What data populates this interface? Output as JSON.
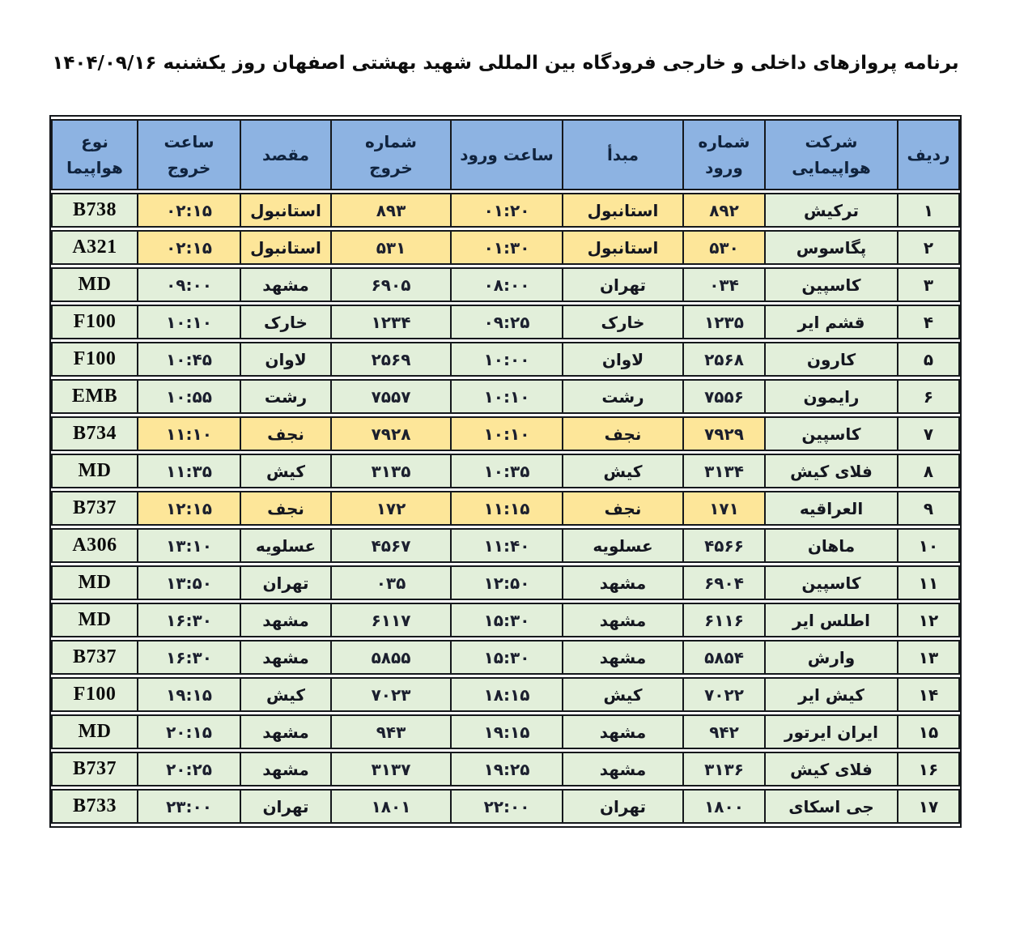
{
  "page": {
    "title": "برنامه پروازهای داخلی و خارجی فرودگاه بین المللی شهید بهشتی اصفهان روز  یکشنبه  ۱۴۰۴/۰۹/۱۶"
  },
  "colors": {
    "header_bg": "#8DB3E2",
    "row_bg": "#E2EFDA",
    "highlight_bg": "#FDE699",
    "border": "#15181c",
    "text": "#14161f"
  },
  "table": {
    "columns": [
      {
        "key": "radif",
        "label": "ردیف"
      },
      {
        "key": "airline",
        "label": "شرکت\nهواپیمایی"
      },
      {
        "key": "arrival_no",
        "label": "شماره\nورود"
      },
      {
        "key": "origin",
        "label": "مبدأ"
      },
      {
        "key": "arrival_time",
        "label": "ساعت ورود"
      },
      {
        "key": "departure_no",
        "label": "شماره\nخروج"
      },
      {
        "key": "destination",
        "label": "مقصد"
      },
      {
        "key": "departure_time",
        "label": "ساعت خروج"
      },
      {
        "key": "aircraft",
        "label": "نوع هواپیما"
      }
    ],
    "highlight_columns": [
      "arrival_no",
      "origin",
      "arrival_time",
      "departure_no",
      "destination",
      "departure_time"
    ],
    "rows": [
      {
        "radif": "۱",
        "airline": "ترکیش",
        "arrival_no": "۸۹۲",
        "origin": "استانبول",
        "arrival_time": "۰۱:۲۰",
        "departure_no": "۸۹۳",
        "destination": "استانبول",
        "departure_time": "۰۲:۱۵",
        "aircraft": "B738",
        "highlight": true
      },
      {
        "radif": "۲",
        "airline": "پگاسوس",
        "arrival_no": "۵۳۰",
        "origin": "استانبول",
        "arrival_time": "۰۱:۳۰",
        "departure_no": "۵۳۱",
        "destination": "استانبول",
        "departure_time": "۰۲:۱۵",
        "aircraft": "A321",
        "highlight": true
      },
      {
        "radif": "۳",
        "airline": "کاسپین",
        "arrival_no": "۰۳۴",
        "origin": "تهران",
        "arrival_time": "۰۸:۰۰",
        "departure_no": "۶۹۰۵",
        "destination": "مشهد",
        "departure_time": "۰۹:۰۰",
        "aircraft": "MD",
        "highlight": false
      },
      {
        "radif": "۴",
        "airline": "قشم ایر",
        "arrival_no": "۱۲۳۵",
        "origin": "خارک",
        "arrival_time": "۰۹:۲۵",
        "departure_no": "۱۲۳۴",
        "destination": "خارک",
        "departure_time": "۱۰:۱۰",
        "aircraft": "F100",
        "highlight": false
      },
      {
        "radif": "۵",
        "airline": "کارون",
        "arrival_no": "۲۵۶۸",
        "origin": "لاوان",
        "arrival_time": "۱۰:۰۰",
        "departure_no": "۲۵۶۹",
        "destination": "لاوان",
        "departure_time": "۱۰:۴۵",
        "aircraft": "F100",
        "highlight": false
      },
      {
        "radif": "۶",
        "airline": "رایمون",
        "arrival_no": "۷۵۵۶",
        "origin": "رشت",
        "arrival_time": "۱۰:۱۰",
        "departure_no": "۷۵۵۷",
        "destination": "رشت",
        "departure_time": "۱۰:۵۵",
        "aircraft": "EMB",
        "highlight": false
      },
      {
        "radif": "۷",
        "airline": "کاسپین",
        "arrival_no": "۷۹۲۹",
        "origin": "نجف",
        "arrival_time": "۱۰:۱۰",
        "departure_no": "۷۹۲۸",
        "destination": "نجف",
        "departure_time": "۱۱:۱۰",
        "aircraft": "B734",
        "highlight": true
      },
      {
        "radif": "۸",
        "airline": "فلای کیش",
        "arrival_no": "۳۱۳۴",
        "origin": "کیش",
        "arrival_time": "۱۰:۳۵",
        "departure_no": "۳۱۳۵",
        "destination": "کیش",
        "departure_time": "۱۱:۳۵",
        "aircraft": "MD",
        "highlight": false
      },
      {
        "radif": "۹",
        "airline": "العراقیه",
        "arrival_no": "۱۷۱",
        "origin": "نجف",
        "arrival_time": "۱۱:۱۵",
        "departure_no": "۱۷۲",
        "destination": "نجف",
        "departure_time": "۱۲:۱۵",
        "aircraft": "B737",
        "highlight": true
      },
      {
        "radif": "۱۰",
        "airline": "ماهان",
        "arrival_no": "۴۵۶۶",
        "origin": "عسلویه",
        "arrival_time": "۱۱:۴۰",
        "departure_no": "۴۵۶۷",
        "destination": "عسلویه",
        "departure_time": "۱۳:۱۰",
        "aircraft": "A306",
        "highlight": false
      },
      {
        "radif": "۱۱",
        "airline": "کاسپین",
        "arrival_no": "۶۹۰۴",
        "origin": "مشهد",
        "arrival_time": "۱۲:۵۰",
        "departure_no": "۰۳۵",
        "destination": "تهران",
        "departure_time": "۱۳:۵۰",
        "aircraft": "MD",
        "highlight": false
      },
      {
        "radif": "۱۲",
        "airline": "اطلس ایر",
        "arrival_no": "۶۱۱۶",
        "origin": "مشهد",
        "arrival_time": "۱۵:۳۰",
        "departure_no": "۶۱۱۷",
        "destination": "مشهد",
        "departure_time": "۱۶:۳۰",
        "aircraft": "MD",
        "highlight": false
      },
      {
        "radif": "۱۳",
        "airline": "وارش",
        "arrival_no": "۵۸۵۴",
        "origin": "مشهد",
        "arrival_time": "۱۵:۳۰",
        "departure_no": "۵۸۵۵",
        "destination": "مشهد",
        "departure_time": "۱۶:۳۰",
        "aircraft": "B737",
        "highlight": false
      },
      {
        "radif": "۱۴",
        "airline": "کیش ایر",
        "arrival_no": "۷۰۲۲",
        "origin": "کیش",
        "arrival_time": "۱۸:۱۵",
        "departure_no": "۷۰۲۳",
        "destination": "کیش",
        "departure_time": "۱۹:۱۵",
        "aircraft": "F100",
        "highlight": false
      },
      {
        "radif": "۱۵",
        "airline": "ایران ایرتور",
        "arrival_no": "۹۴۲",
        "origin": "مشهد",
        "arrival_time": "۱۹:۱۵",
        "departure_no": "۹۴۳",
        "destination": "مشهد",
        "departure_time": "۲۰:۱۵",
        "aircraft": "MD",
        "highlight": false
      },
      {
        "radif": "۱۶",
        "airline": "فلای کیش",
        "arrival_no": "۳۱۳۶",
        "origin": "مشهد",
        "arrival_time": "۱۹:۲۵",
        "departure_no": "۳۱۳۷",
        "destination": "مشهد",
        "departure_time": "۲۰:۲۵",
        "aircraft": "B737",
        "highlight": false
      },
      {
        "radif": "۱۷",
        "airline": "جی اسکای",
        "arrival_no": "۱۸۰۰",
        "origin": "تهران",
        "arrival_time": "۲۲:۰۰",
        "departure_no": "۱۸۰۱",
        "destination": "تهران",
        "departure_time": "۲۳:۰۰",
        "aircraft": "B733",
        "highlight": false
      }
    ]
  }
}
